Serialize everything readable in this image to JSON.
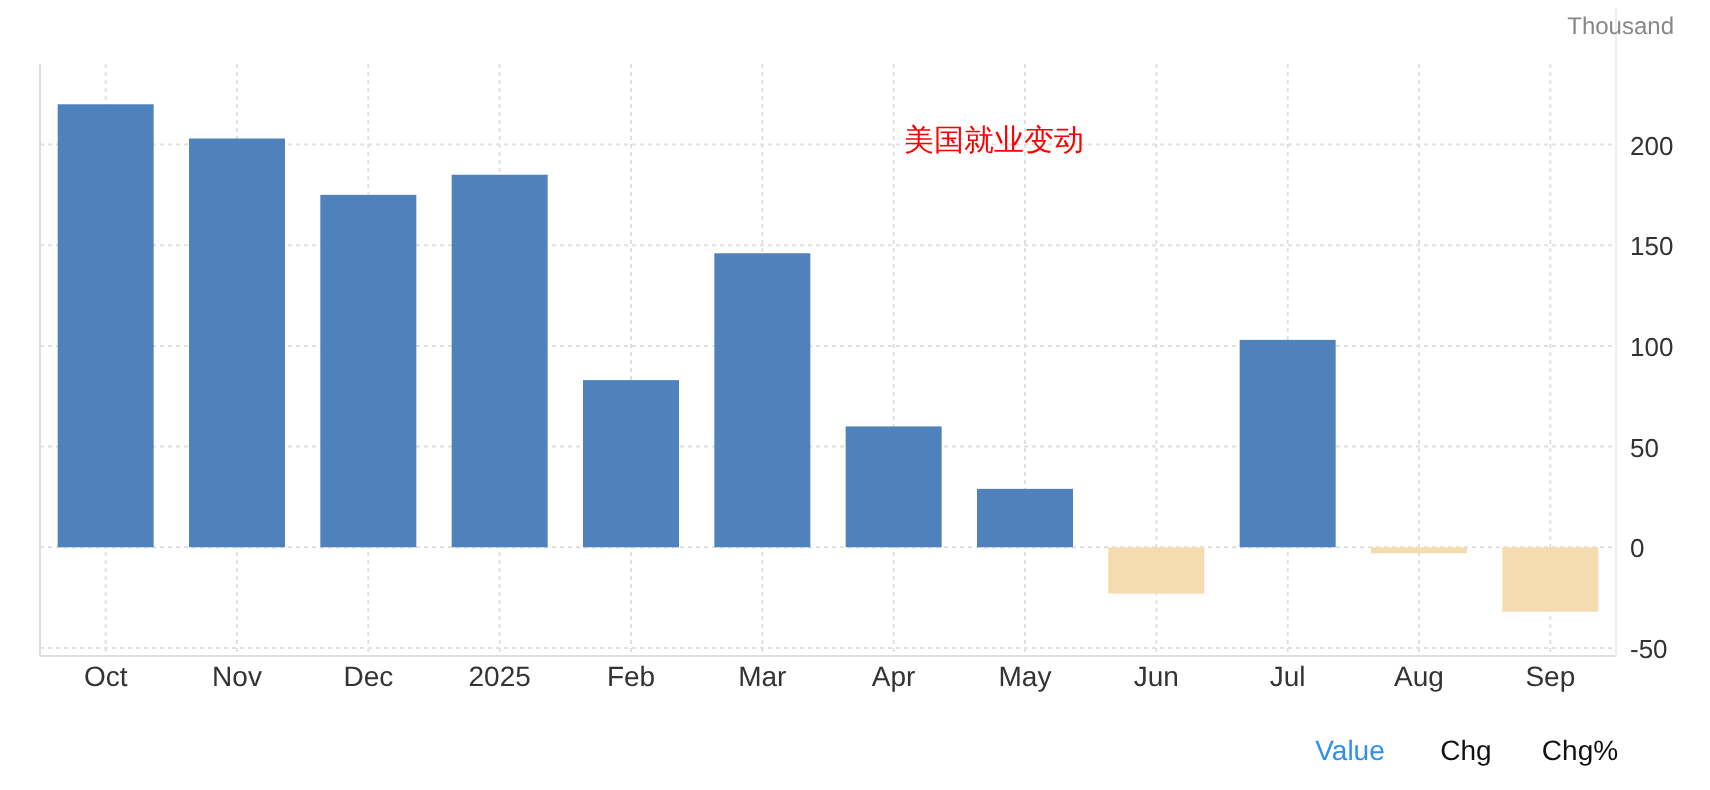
{
  "chart_data": {
    "type": "bar",
    "title": "美国就业变动",
    "ylabel": "Thousand",
    "categories": [
      "Oct",
      "Nov",
      "Dec",
      "2025",
      "Feb",
      "Mar",
      "Apr",
      "May",
      "Jun",
      "Jul",
      "Aug",
      "Sep"
    ],
    "values": [
      220,
      203,
      175,
      185,
      83,
      146,
      60,
      29,
      -23,
      103,
      -3,
      -32
    ],
    "colors": [
      "#4f81bd",
      "#4f81bd",
      "#4f81bd",
      "#4f81bd",
      "#4f81bd",
      "#4f81bd",
      "#4f81bd",
      "#4f81bd",
      "#f4dcb0",
      "#4f81bd",
      "#f4dcb0",
      "#f4dcb0"
    ],
    "ylim": [
      -54,
      240
    ],
    "yticks": [
      -50,
      0,
      50,
      100,
      150,
      200
    ],
    "grid": true,
    "annotations": [
      "Value",
      "Chg",
      "Chg%"
    ]
  }
}
